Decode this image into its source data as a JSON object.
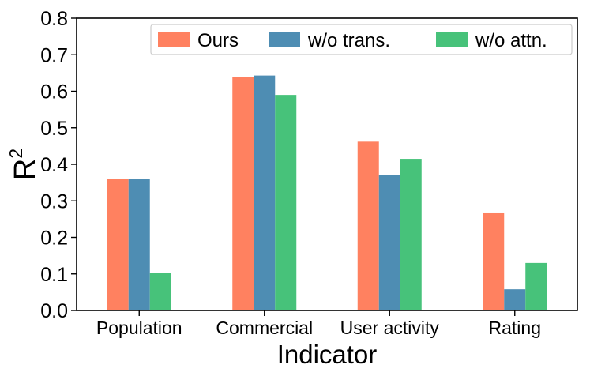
{
  "chart_data": {
    "type": "bar",
    "categories": [
      "Population",
      "Commercial",
      "User activity",
      "Rating"
    ],
    "series": [
      {
        "name": "Ours",
        "color": "#FF8160",
        "values": [
          0.36,
          0.64,
          0.462,
          0.266
        ]
      },
      {
        "name": "w/o trans.",
        "color": "#4E8DB3",
        "values": [
          0.359,
          0.643,
          0.371,
          0.058
        ]
      },
      {
        "name": "w/o attn.",
        "color": "#47C27A",
        "values": [
          0.102,
          0.59,
          0.415,
          0.13
        ]
      }
    ],
    "xlabel": "Indicator",
    "ylabel": "R",
    "ylabel_superscript": "2",
    "ylim": [
      0,
      0.8
    ],
    "yticks": [
      "0.0",
      "0.1",
      "0.2",
      "0.3",
      "0.4",
      "0.5",
      "0.6",
      "0.7",
      "0.8"
    ],
    "legend_position": "top-right",
    "grid": false
  }
}
